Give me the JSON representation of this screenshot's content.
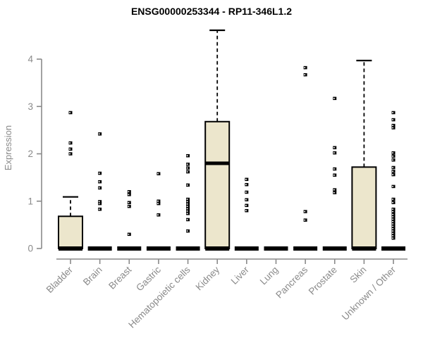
{
  "chart_data": {
    "type": "boxplot",
    "title": "ENSG00000253344 - RP11-346L1.2",
    "ylabel": "Expression",
    "xlabel": "",
    "ylim": [
      0,
      4.7
    ],
    "yticks": [
      0,
      1,
      2,
      3,
      4
    ],
    "grid": false,
    "legend": "none",
    "colors": {
      "box_fill": "#ECE6CC",
      "box_stroke": "#000000",
      "axis": "#8a8a8a",
      "title": "#000000",
      "outlier": "#000000"
    },
    "categories": [
      "Bladder",
      "Brain",
      "Breast",
      "Gastric",
      "Hematopoietic cells",
      "Kidney",
      "Liver",
      "Lung",
      "Pancreas",
      "Prostate",
      "Skin",
      "Unknown / Other"
    ],
    "series": [
      {
        "label": "Bladder",
        "q1": 0,
        "median": 0,
        "q3": 0.68,
        "whisker_low": 0,
        "whisker_high": 1.09,
        "outliers": [
          2.0,
          2.1,
          2.23,
          2.87
        ]
      },
      {
        "label": "Brain",
        "q1": 0,
        "median": 0,
        "q3": 0,
        "whisker_low": 0,
        "whisker_high": 0,
        "outliers": [
          0.83,
          0.95,
          0.99,
          1.28,
          1.41,
          1.59,
          2.42
        ]
      },
      {
        "label": "Breast",
        "q1": 0,
        "median": 0,
        "q3": 0,
        "whisker_low": 0,
        "whisker_high": 0,
        "outliers": [
          0.3,
          0.89,
          0.97,
          1.14,
          1.2
        ]
      },
      {
        "label": "Gastric",
        "q1": 0,
        "median": 0,
        "q3": 0,
        "whisker_low": 0,
        "whisker_high": 0,
        "outliers": [
          0.71,
          0.95,
          1.0,
          1.58
        ]
      },
      {
        "label": "Hematopoietic cells",
        "q1": 0,
        "median": 0,
        "q3": 0,
        "whisker_low": 0,
        "whisker_high": 0,
        "outliers": [
          0.37,
          0.61,
          0.74,
          0.79,
          0.84,
          0.89,
          0.94,
          0.99,
          1.04,
          1.34,
          1.62,
          1.7,
          1.78,
          1.96
        ]
      },
      {
        "label": "Kidney",
        "q1": 0,
        "median": 1.8,
        "q3": 2.68,
        "whisker_low": 0,
        "whisker_high": 4.61,
        "outliers": []
      },
      {
        "label": "Liver",
        "q1": 0,
        "median": 0,
        "q3": 0,
        "whisker_low": 0,
        "whisker_high": 0,
        "outliers": [
          0.8,
          0.91,
          1.03,
          1.19,
          1.35,
          1.46
        ]
      },
      {
        "label": "Lung",
        "q1": 0,
        "median": 0,
        "q3": 0,
        "whisker_low": 0,
        "whisker_high": 0,
        "outliers": []
      },
      {
        "label": "Pancreas",
        "q1": 0,
        "median": 0,
        "q3": 0,
        "whisker_low": 0,
        "whisker_high": 0,
        "outliers": [
          0.6,
          0.78,
          3.67,
          3.82
        ]
      },
      {
        "label": "Prostate",
        "q1": 0,
        "median": 0,
        "q3": 0,
        "whisker_low": 0,
        "whisker_high": 0,
        "outliers": [
          1.18,
          1.24,
          1.55,
          1.68,
          2.02,
          2.13,
          3.17
        ]
      },
      {
        "label": "Skin",
        "q1": 0,
        "median": 0,
        "q3": 1.72,
        "whisker_low": 0,
        "whisker_high": 3.97,
        "outliers": []
      },
      {
        "label": "Unknown / Other",
        "q1": 0,
        "median": 0,
        "q3": 0,
        "whisker_low": 0,
        "whisker_high": 0,
        "outliers": [
          0.22,
          0.27,
          0.32,
          0.37,
          0.42,
          0.47,
          0.52,
          0.57,
          0.62,
          0.67,
          0.72,
          0.78,
          0.83,
          0.97,
          1.04,
          1.31,
          1.56,
          1.63,
          1.71,
          1.87,
          1.95,
          2.02,
          2.55,
          2.6,
          2.72,
          2.87
        ]
      }
    ]
  }
}
